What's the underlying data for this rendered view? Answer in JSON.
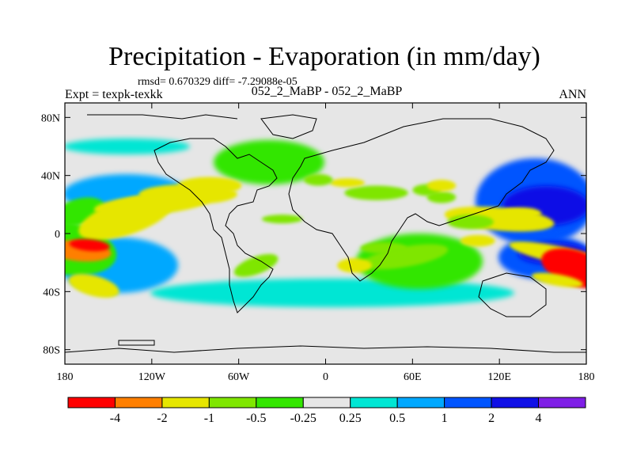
{
  "chart_data": {
    "type": "heatmap",
    "title": "Precipitation - Evaporation (in mm/day)",
    "subtitle": "rmsd= 0.670329 diff= -7.29088e-05",
    "left_label": "Expt = texpk-texkk",
    "center_label": "052_2_MaBP - 052_2_MaBP",
    "right_label": "ANN",
    "x_ticks": [
      {
        "value": -180,
        "label": "180"
      },
      {
        "value": -120,
        "label": "120W"
      },
      {
        "value": -60,
        "label": "60W"
      },
      {
        "value": 0,
        "label": "0"
      },
      {
        "value": 60,
        "label": "60E"
      },
      {
        "value": 120,
        "label": "120E"
      },
      {
        "value": 180,
        "label": "180"
      }
    ],
    "y_ticks": [
      {
        "value": 80,
        "label": "80N"
      },
      {
        "value": 40,
        "label": "40N"
      },
      {
        "value": 0,
        "label": "0"
      },
      {
        "value": -40,
        "label": "40S"
      },
      {
        "value": -80,
        "label": "80S"
      }
    ],
    "xlim": [
      -180,
      180
    ],
    "ylim": [
      -90,
      90
    ],
    "colorbar": {
      "colors": [
        "#ff0000",
        "#ff7f00",
        "#e6e600",
        "#7fe600",
        "#33e600",
        "#e6e6e6",
        "#00e6d4",
        "#00a8ff",
        "#0055ff",
        "#1010e6",
        "#7f1fe6"
      ],
      "labels": [
        "-4",
        "-2",
        "-1",
        "-0.5",
        "-0.25",
        "0.25",
        "0.5",
        "1",
        "2",
        "4"
      ]
    },
    "background_color": "#e6e6e6",
    "regions": [
      {
        "level": 4,
        "lon": -180,
        "lat": -10,
        "lon_w": 36,
        "lat_h": 18,
        "angle": 10
      },
      {
        "level": 4,
        "lon": -170,
        "lat": 15,
        "lon_w": 18,
        "lat_h": 9,
        "angle": -15
      },
      {
        "level": 2,
        "lon": -138,
        "lat": 11,
        "lon_w": 34,
        "lat_h": 12,
        "angle": -18
      },
      {
        "level": 2,
        "lon": -120,
        "lat": 20,
        "lon_w": 40,
        "lat_h": 7,
        "angle": -5
      },
      {
        "level": 2,
        "lon": -95,
        "lat": 27,
        "lon_w": 34,
        "lat_h": 7,
        "angle": 0
      },
      {
        "level": 2,
        "lon": -80,
        "lat": 33,
        "lon_w": 22,
        "lat_h": 6,
        "angle": 0
      },
      {
        "level": 3,
        "lon": -30,
        "lat": 10,
        "lon_w": 14,
        "lat_h": 3,
        "angle": 0
      },
      {
        "level": 3,
        "lon": -48,
        "lat": -22,
        "lon_w": 16,
        "lat_h": 6,
        "angle": -20
      },
      {
        "level": 2,
        "lon": 162,
        "lat": -15,
        "lon_w": 36,
        "lat_h": 6,
        "angle": 12
      },
      {
        "level": 0,
        "lon": 173,
        "lat": -24,
        "lon_w": 25,
        "lat_h": 12,
        "angle": 18
      },
      {
        "level": 2,
        "lon": 120,
        "lat": 10,
        "lon_w": 38,
        "lat_h": 8,
        "angle": 5
      },
      {
        "level": 2,
        "lon": 135,
        "lat": 14,
        "lon_w": 14,
        "lat_h": 4,
        "angle": 0
      },
      {
        "level": 3,
        "lon": 35,
        "lat": 28,
        "lon_w": 22,
        "lat_h": 5,
        "angle": 0
      },
      {
        "level": 3,
        "lon": 70,
        "lat": 30,
        "lon_w": 10,
        "lat_h": 4,
        "angle": 0
      },
      {
        "level": 3,
        "lon": 80,
        "lat": 25,
        "lon_w": 10,
        "lat_h": 4,
        "angle": 0
      },
      {
        "level": 2,
        "lon": 80,
        "lat": 33,
        "lon_w": 10,
        "lat_h": 4,
        "angle": 0
      },
      {
        "level": 2,
        "lon": 15,
        "lat": 35,
        "lon_w": 12,
        "lat_h": 3,
        "angle": 0
      },
      {
        "level": 3,
        "lon": -5,
        "lat": 37,
        "lon_w": 10,
        "lat_h": 4,
        "angle": 0
      },
      {
        "level": 2,
        "lon": -160,
        "lat": -36,
        "lon_w": 18,
        "lat_h": 7,
        "angle": 15
      },
      {
        "level": 1,
        "lon": -170,
        "lat": -12,
        "lon_w": 22,
        "lat_h": 7,
        "angle": 5
      },
      {
        "level": 0,
        "lon": -163,
        "lat": -8,
        "lon_w": 14,
        "lat_h": 4,
        "angle": 5
      },
      {
        "level": 3,
        "lon": 55,
        "lat": -16,
        "lon_w": 30,
        "lat_h": 7,
        "angle": -10
      },
      {
        "level": 2,
        "lon": 20,
        "lat": -22,
        "lon_w": 12,
        "lat_h": 5,
        "angle": 0
      },
      {
        "level": 3,
        "lon": 40,
        "lat": -10,
        "lon_w": 16,
        "lat_h": 4,
        "angle": 0
      },
      {
        "level": 2,
        "lon": 160,
        "lat": -32,
        "lon_w": 18,
        "lat_h": 4,
        "angle": 10
      },
      {
        "level": 3,
        "lon": 100,
        "lat": 8,
        "lon_w": 16,
        "lat_h": 5,
        "angle": 0
      },
      {
        "level": 2,
        "lon": 105,
        "lat": -5,
        "lon_w": 12,
        "lat_h": 4,
        "angle": 0
      }
    ]
  }
}
